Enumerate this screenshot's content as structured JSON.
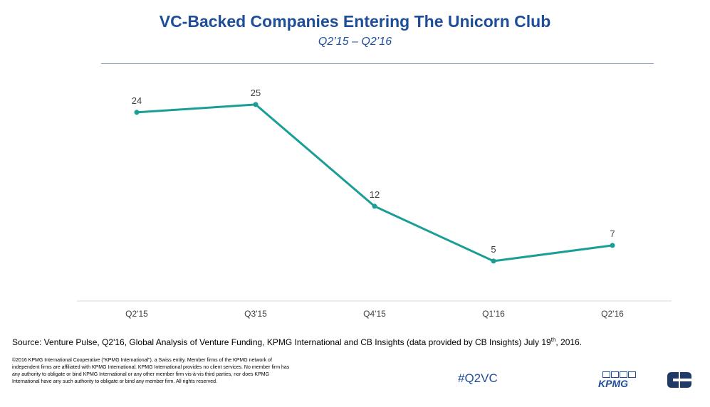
{
  "header": {
    "title": "VC-Backed Companies Entering The Unicorn Club",
    "subtitle": "Q2’15 – Q2’16"
  },
  "chart_data": {
    "type": "line",
    "categories": [
      "Q2'15",
      "Q3'15",
      "Q4'15",
      "Q1'16",
      "Q2'16"
    ],
    "series": [
      {
        "values": [
          24,
          25,
          12,
          5,
          7
        ]
      }
    ],
    "data_labels": [
      "24",
      "25",
      "12",
      "5",
      "7"
    ],
    "ylim": [
      0,
      26
    ],
    "grid": false,
    "line_color": "#1a9e96"
  },
  "footer": {
    "source_main": "Source: Venture Pulse, Q2'16, Global Analysis of Venture Funding, KPMG International and CB Insights (data provided by CB Insights) July 19",
    "source_sup": "th",
    "source_end": ", 2016.",
    "legal": "©2016 KPMG International Cooperative (“KPMG International”), a Swiss entity. Member firms of the KPMG network of independent firms are affiliated with KPMG International. KPMG International provides no client services. No member firm has any authority to obligate or bind KPMG International or any other member firm vis-à-vis third parties, nor does KPMG International have any such authority to obligate or bind any member firm. All rights reserved.",
    "hashtag": "#Q2VC",
    "kpmg_logo_text": "KPMG"
  },
  "colors": {
    "title": "#1f4e99",
    "line": "#1a9e96",
    "cb_logo": "#1f3a66"
  }
}
